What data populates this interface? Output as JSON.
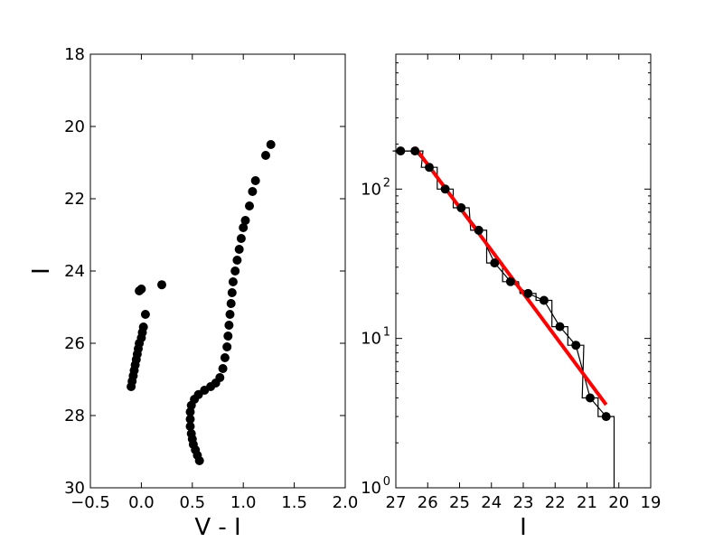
{
  "chart_data": [
    {
      "type": "scatter",
      "xlabel": "V - I",
      "ylabel": "I",
      "xlim": [
        -0.5,
        2.0
      ],
      "ylim": [
        30,
        18
      ],
      "y_inverted": true,
      "xticks": [
        -0.5,
        0.0,
        0.5,
        1.0,
        1.5,
        2.0
      ],
      "xtick_labels": [
        "−0.5",
        "0.0",
        "0.5",
        "1.0",
        "1.5",
        "2.0"
      ],
      "yticks": [
        18,
        20,
        22,
        24,
        26,
        28,
        30
      ],
      "ytick_labels": [
        "18",
        "20",
        "22",
        "24",
        "26",
        "28",
        "30"
      ],
      "marker_color": "#000000",
      "series": [
        {
          "points": [
            [
              -0.1,
              27.2
            ],
            [
              -0.09,
              27.05
            ],
            [
              -0.08,
              26.9
            ],
            [
              -0.07,
              26.75
            ],
            [
              -0.06,
              26.6
            ],
            [
              -0.05,
              26.45
            ],
            [
              -0.04,
              26.3
            ],
            [
              -0.03,
              26.15
            ],
            [
              -0.02,
              26.0
            ],
            [
              0.0,
              25.85
            ],
            [
              0.01,
              25.7
            ],
            [
              0.02,
              25.55
            ],
            [
              0.04,
              25.2
            ],
            [
              0.2,
              24.38
            ],
            [
              -0.02,
              24.55
            ],
            [
              0.0,
              24.5
            ],
            [
              0.57,
              29.25
            ],
            [
              0.55,
              29.1
            ],
            [
              0.53,
              28.95
            ],
            [
              0.51,
              28.8
            ],
            [
              0.5,
              28.65
            ],
            [
              0.49,
              28.5
            ],
            [
              0.48,
              28.3
            ],
            [
              0.48,
              28.1
            ],
            [
              0.48,
              27.9
            ],
            [
              0.49,
              27.72
            ],
            [
              0.52,
              27.55
            ],
            [
              0.56,
              27.42
            ],
            [
              0.62,
              27.3
            ],
            [
              0.68,
              27.2
            ],
            [
              0.73,
              27.1
            ],
            [
              0.77,
              26.95
            ],
            [
              0.8,
              26.7
            ],
            [
              0.82,
              26.4
            ],
            [
              0.84,
              26.1
            ],
            [
              0.85,
              25.8
            ],
            [
              0.86,
              25.5
            ],
            [
              0.87,
              25.2
            ],
            [
              0.88,
              24.9
            ],
            [
              0.89,
              24.6
            ],
            [
              0.9,
              24.3
            ],
            [
              0.92,
              24.0
            ],
            [
              0.94,
              23.7
            ],
            [
              0.96,
              23.4
            ],
            [
              0.98,
              23.1
            ],
            [
              1.0,
              22.8
            ],
            [
              1.02,
              22.6
            ],
            [
              1.06,
              22.2
            ],
            [
              1.09,
              21.8
            ],
            [
              1.12,
              21.5
            ],
            [
              1.22,
              20.8
            ],
            [
              1.27,
              20.5
            ]
          ]
        }
      ]
    },
    {
      "type": "line",
      "xlabel": "I",
      "ylabel": "",
      "xlim": [
        27,
        19
      ],
      "x_inverted": true,
      "ylim": [
        1,
        800
      ],
      "yscale": "log",
      "xticks": [
        27,
        26,
        25,
        24,
        23,
        22,
        21,
        20,
        19
      ],
      "xtick_labels": [
        "27",
        "26",
        "25",
        "24",
        "23",
        "22",
        "21",
        "20",
        "19"
      ],
      "yticks": [
        1,
        10,
        100
      ],
      "ytick_labels": [
        {
          "base": "10",
          "exp": "0"
        },
        {
          "base": "10",
          "exp": "1"
        },
        {
          "base": "10",
          "exp": "2"
        }
      ],
      "series": [
        {
          "kind": "markers-with-line",
          "color": "#000000",
          "x": [
            26.85,
            26.4,
            25.95,
            25.45,
            24.95,
            24.4,
            23.9,
            23.4,
            22.85,
            22.35,
            21.85,
            21.35,
            20.9,
            20.4
          ],
          "y": [
            180,
            180,
            140,
            100,
            75,
            53,
            32,
            24,
            20,
            18,
            12,
            9,
            4,
            3
          ]
        },
        {
          "kind": "step-histogram",
          "color": "#000000",
          "x": [
            26.85,
            26.4,
            25.95,
            25.45,
            24.95,
            24.4,
            23.9,
            23.4,
            22.85,
            22.35,
            21.85,
            21.35,
            20.9,
            20.4
          ],
          "y": [
            180,
            180,
            140,
            100,
            75,
            53,
            32,
            24,
            20,
            18,
            12,
            9,
            4,
            3
          ]
        },
        {
          "kind": "fit-line",
          "color": "#ff0000",
          "x": [
            26.4,
            20.4
          ],
          "y": [
            190,
            3.6
          ]
        }
      ]
    }
  ]
}
